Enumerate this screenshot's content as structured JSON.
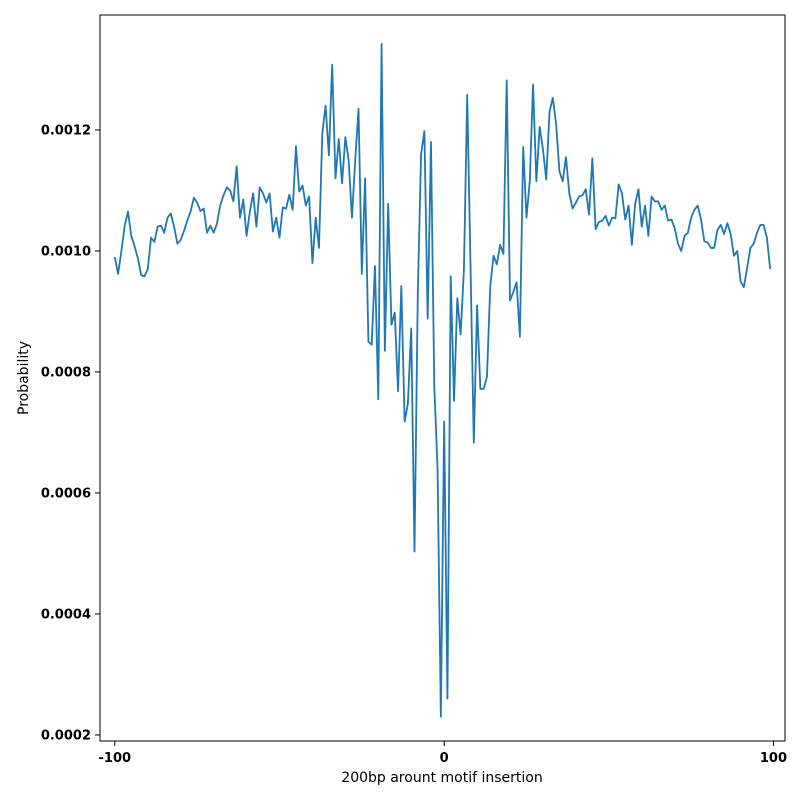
{
  "chart_data": {
    "type": "line",
    "xlabel": "200bp arount motif insertion",
    "ylabel": "Probability",
    "xlim": [
      -104.5,
      103.5
    ],
    "ylim": [
      0.00019,
      0.00139
    ],
    "x_ticks": [
      -100,
      0,
      100
    ],
    "x_tick_labels": [
      "-100",
      "0",
      "100"
    ],
    "y_ticks": [
      0.0002,
      0.0004,
      0.0006,
      0.0008,
      0.001,
      0.0012
    ],
    "y_tick_labels": [
      "0.0002",
      "0.0004",
      "0.0006",
      "0.0008",
      "0.0010",
      "0.0012"
    ],
    "grid": false,
    "legend": "none",
    "series": [
      {
        "color": "#1f77b4",
        "x": [
          -100,
          -99,
          -98,
          -97,
          -96,
          -95,
          -94,
          -93,
          -92,
          -91,
          -90,
          -89,
          -88,
          -87,
          -86,
          -85,
          -84,
          -83,
          -82,
          -81,
          -80,
          -79,
          -78,
          -77,
          -76,
          -75,
          -74,
          -73,
          -72,
          -71,
          -70,
          -69,
          -68,
          -67,
          -66,
          -65,
          -64,
          -63,
          -62,
          -61,
          -60,
          -59,
          -58,
          -57,
          -56,
          -55,
          -54,
          -53,
          -52,
          -51,
          -50,
          -49,
          -48,
          -47,
          -46,
          -45,
          -44,
          -43,
          -42,
          -41,
          -40,
          -39,
          -38,
          -37,
          -36,
          -35,
          -34,
          -33,
          -32,
          -31,
          -30,
          -29,
          -28,
          -27,
          -26,
          -25,
          -24,
          -23,
          -22,
          -21,
          -20,
          -19,
          -18,
          -17,
          -16,
          -15,
          -14,
          -13,
          -12,
          -11,
          -10,
          -9,
          -8,
          -7,
          -6,
          -5,
          -4,
          -3,
          -2,
          -1,
          0,
          1,
          2,
          3,
          4,
          5,
          6,
          7,
          8,
          9,
          10,
          11,
          12,
          13,
          14,
          15,
          16,
          17,
          18,
          19,
          20,
          21,
          22,
          23,
          24,
          25,
          26,
          27,
          28,
          29,
          30,
          31,
          32,
          33,
          34,
          35,
          36,
          37,
          38,
          39,
          40,
          41,
          42,
          43,
          44,
          45,
          46,
          47,
          48,
          49,
          50,
          51,
          52,
          53,
          54,
          55,
          56,
          57,
          58,
          59,
          60,
          61,
          62,
          63,
          64,
          65,
          66,
          67,
          68,
          69,
          70,
          71,
          72,
          73,
          74,
          75,
          76,
          77,
          78,
          79,
          80,
          81,
          82,
          83,
          84,
          85,
          86,
          87,
          88,
          89,
          90,
          91,
          92,
          93,
          94,
          95,
          96,
          97,
          98,
          99
        ],
        "y": [
          0.00099,
          0.000962,
          0.001,
          0.001042,
          0.001065,
          0.001025,
          0.001008,
          0.000988,
          0.00096,
          0.000958,
          0.00097,
          0.001022,
          0.001015,
          0.00104,
          0.001042,
          0.00103,
          0.001055,
          0.001062,
          0.00104,
          0.001012,
          0.001018,
          0.001033,
          0.00105,
          0.001065,
          0.001088,
          0.00108,
          0.001066,
          0.00107,
          0.00103,
          0.001042,
          0.00103,
          0.001045,
          0.001075,
          0.001092,
          0.001105,
          0.0011,
          0.001082,
          0.00114,
          0.001055,
          0.001085,
          0.001025,
          0.001065,
          0.001095,
          0.00104,
          0.001105,
          0.001095,
          0.00108,
          0.001095,
          0.001032,
          0.001055,
          0.001022,
          0.001072,
          0.00107,
          0.001093,
          0.001068,
          0.001173,
          0.001098,
          0.001108,
          0.001075,
          0.00109,
          0.00098,
          0.001055,
          0.001005,
          0.001195,
          0.00124,
          0.001158,
          0.001308,
          0.00112,
          0.001185,
          0.001112,
          0.001188,
          0.00115,
          0.001055,
          0.00115,
          0.001235,
          0.000962,
          0.00112,
          0.00085,
          0.000845,
          0.000975,
          0.000755,
          0.001342,
          0.000835,
          0.001078,
          0.000878,
          0.000898,
          0.000768,
          0.000942,
          0.000718,
          0.000748,
          0.000872,
          0.000503,
          0.00093,
          0.00116,
          0.001198,
          0.000888,
          0.00118,
          0.000778,
          0.00064,
          0.00023,
          0.000718,
          0.00026,
          0.000958,
          0.000752,
          0.000922,
          0.000862,
          0.000968,
          0.001258,
          0.000978,
          0.000683,
          0.00091,
          0.000772,
          0.000772,
          0.000792,
          0.000942,
          0.000992,
          0.000978,
          0.00101,
          0.000995,
          0.001282,
          0.000918,
          0.000932,
          0.000948,
          0.000858,
          0.001172,
          0.001055,
          0.001115,
          0.001275,
          0.001115,
          0.001205,
          0.001168,
          0.001118,
          0.00123,
          0.001253,
          0.00121,
          0.001132,
          0.001115,
          0.001155,
          0.001095,
          0.00107,
          0.00108,
          0.00109,
          0.001092,
          0.001102,
          0.00106,
          0.001153,
          0.001036,
          0.001048,
          0.00105,
          0.001058,
          0.001042,
          0.001055,
          0.001054,
          0.00111,
          0.001095,
          0.001052,
          0.001075,
          0.00101,
          0.001078,
          0.001102,
          0.00104,
          0.001075,
          0.001025,
          0.00109,
          0.001082,
          0.001082,
          0.001068,
          0.001075,
          0.00105,
          0.001052,
          0.001038,
          0.001012,
          0.001,
          0.001025,
          0.00103,
          0.001055,
          0.001068,
          0.001075,
          0.001052,
          0.001016,
          0.001014,
          0.001005,
          0.001005,
          0.001035,
          0.001043,
          0.001028,
          0.001046,
          0.001028,
          0.000992,
          0.001,
          0.00095,
          0.00094,
          0.000972,
          0.001005,
          0.001012,
          0.00103,
          0.001043,
          0.001043,
          0.001022,
          0.00097
        ]
      }
    ]
  }
}
